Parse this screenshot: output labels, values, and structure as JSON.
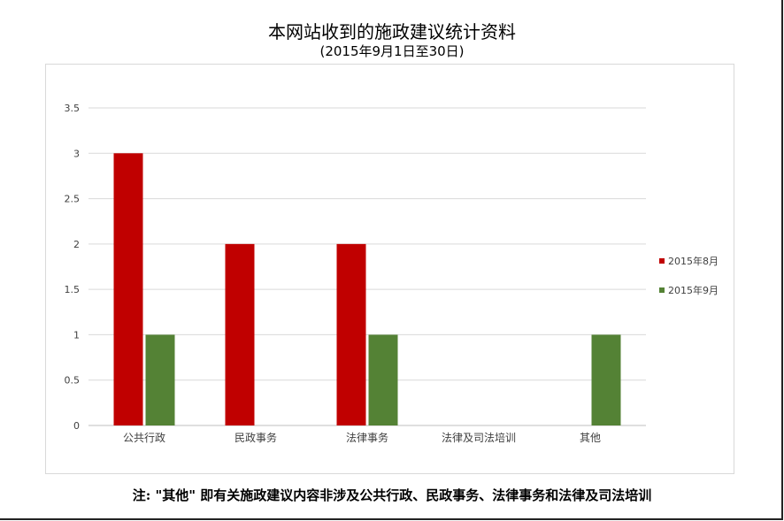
{
  "header": {
    "title": "本网站收到的施政建议统计资料",
    "subtitle": "(2015年9月1日至30日)"
  },
  "note": "注: \"其他\" 即有关施政建议内容非涉及公共行政、民政事务、法律事务和法律及司法培训",
  "chart_data": {
    "type": "bar",
    "title": "本网站收到的施政建议统计资料",
    "subtitle": "(2015年9月1日至30日)",
    "categories": [
      "公共行政",
      "民政事务",
      "法律事务",
      "法律及司法培训",
      "其他"
    ],
    "series": [
      {
        "name": "2015年8月",
        "values": [
          3,
          2,
          2,
          0,
          0
        ],
        "color": "#c00000"
      },
      {
        "name": "2015年9月",
        "values": [
          1,
          0,
          1,
          0,
          1
        ],
        "color": "#548235"
      }
    ],
    "yticks": [
      "0",
      "0.5",
      "1",
      "1.5",
      "2",
      "2.5",
      "3",
      "3.5"
    ],
    "ylim": [
      0,
      3.5
    ],
    "xlabel": "",
    "ylabel": "",
    "grid": true,
    "legend": "right"
  }
}
